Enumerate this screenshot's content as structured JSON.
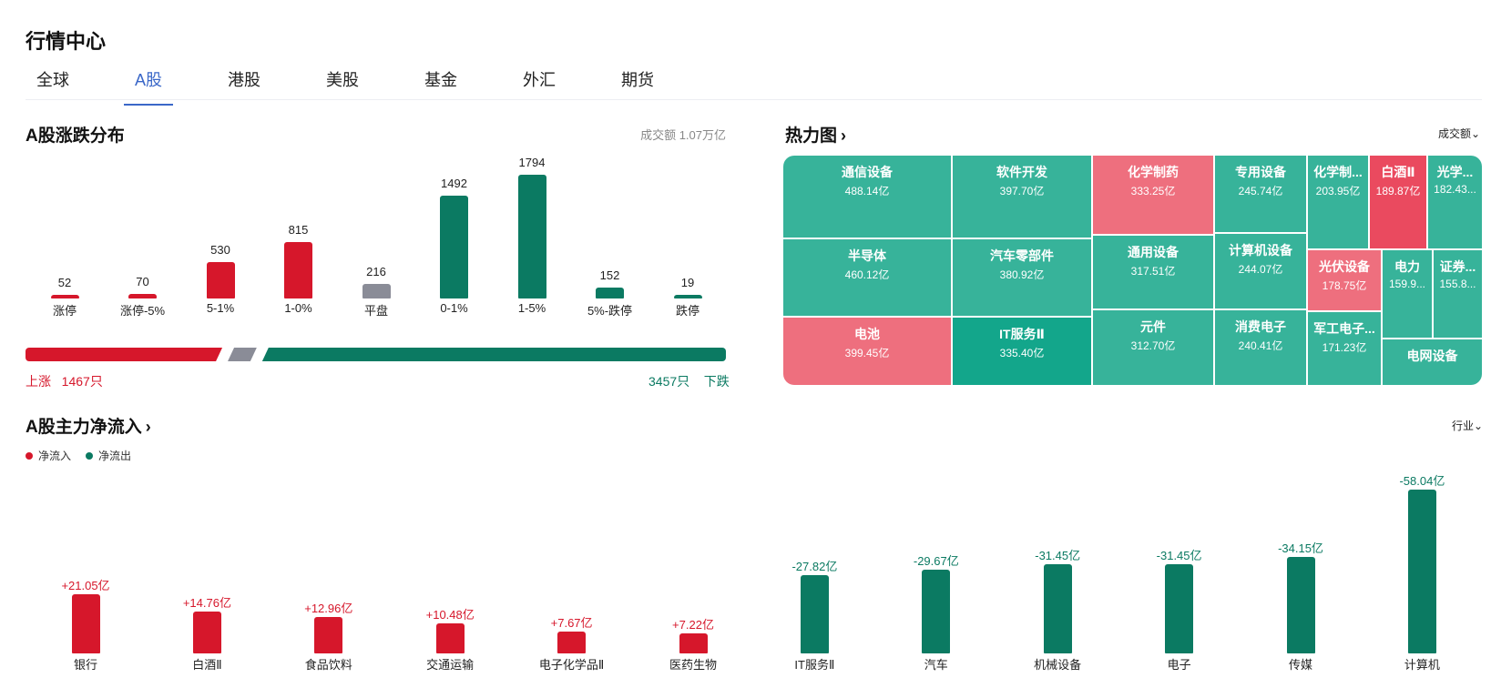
{
  "header": {
    "title": "行情中心",
    "tabs": [
      {
        "label": "全球"
      },
      {
        "label": "A股",
        "active": true
      },
      {
        "label": "港股"
      },
      {
        "label": "美股"
      },
      {
        "label": "基金"
      },
      {
        "label": "外汇"
      },
      {
        "label": "期货"
      }
    ]
  },
  "colors": {
    "up": "#d6172b",
    "down": "#0b7a62",
    "flat": "#8a8c97",
    "accent": "#3a67c8"
  },
  "distribution": {
    "title": "A股涨跌分布",
    "turnover": "成交额 1.07万亿",
    "up_label": "上涨",
    "up_count": "1467只",
    "down_count": "3457只",
    "down_label": "下跌"
  },
  "heatmap": {
    "title": "热力图",
    "chevron": "›",
    "sort": "成交额",
    "cells": [
      {
        "name": "通信设备",
        "value": "488.14亿",
        "trend": "down"
      },
      {
        "name": "半导体",
        "value": "460.12亿",
        "trend": "down"
      },
      {
        "name": "电池",
        "value": "399.45亿",
        "trend": "up"
      },
      {
        "name": "软件开发",
        "value": "397.70亿",
        "trend": "down"
      },
      {
        "name": "汽车零部件",
        "value": "380.92亿",
        "trend": "down"
      },
      {
        "name": "IT服务Ⅱ",
        "value": "335.40亿",
        "trend": "down-strong"
      },
      {
        "name": "化学制药",
        "value": "333.25亿",
        "trend": "up"
      },
      {
        "name": "通用设备",
        "value": "317.51亿",
        "trend": "down"
      },
      {
        "name": "元件",
        "value": "312.70亿",
        "trend": "down"
      },
      {
        "name": "专用设备",
        "value": "245.74亿",
        "trend": "down"
      },
      {
        "name": "计算机设备",
        "value": "244.07亿",
        "trend": "down"
      },
      {
        "name": "消费电子",
        "value": "240.41亿",
        "trend": "down"
      },
      {
        "name": "化学制...",
        "value": "203.95亿",
        "trend": "down"
      },
      {
        "name": "白酒Ⅱ",
        "value": "189.87亿",
        "trend": "up-strong"
      },
      {
        "name": "光学...",
        "value": "182.43...",
        "trend": "down"
      },
      {
        "name": "光伏设备",
        "value": "178.75亿",
        "trend": "up"
      },
      {
        "name": "电力",
        "value": "159.9...",
        "trend": "down"
      },
      {
        "name": "证券...",
        "value": "155.8...",
        "trend": "down"
      },
      {
        "name": "军工电子...",
        "value": "171.23亿",
        "trend": "down"
      },
      {
        "name": "电网设备",
        "value": "",
        "trend": "down"
      }
    ]
  },
  "flows": {
    "title": "A股主力净流入",
    "chevron": "›",
    "filter": "行业",
    "legend_in": "净流入",
    "legend_out": "净流出"
  },
  "chart_data": [
    {
      "type": "bar",
      "title": "A股涨跌分布",
      "categories": [
        "涨停",
        "涨停-5%",
        "5-1%",
        "1-0%",
        "平盘",
        "0-1%",
        "1-5%",
        "5%-跌停",
        "跌停"
      ],
      "values": [
        52,
        70,
        530,
        815,
        216,
        1492,
        1794,
        152,
        19
      ],
      "value_labels": [
        "52",
        "70",
        "530",
        "815",
        "216",
        "1492",
        "1794",
        "152",
        "19"
      ],
      "colors": [
        "up",
        "up",
        "up",
        "up",
        "flat",
        "down",
        "down",
        "down",
        "down"
      ]
    },
    {
      "type": "bar",
      "title": "A股主力净流入",
      "categories": [
        "银行",
        "白酒Ⅱ",
        "食品饮料",
        "交通运输",
        "电子化学品Ⅱ",
        "医药生物",
        "IT服务Ⅱ",
        "汽车",
        "机械设备",
        "电子",
        "传媒",
        "计算机"
      ],
      "values": [
        21.05,
        14.76,
        12.96,
        10.48,
        7.67,
        7.22,
        -27.82,
        -29.67,
        -31.45,
        -31.45,
        -34.15,
        -58.04
      ],
      "value_labels": [
        "+21.05亿",
        "+14.76亿",
        "+12.96亿",
        "+10.48亿",
        "+7.67亿",
        "+7.22亿",
        "-27.82亿",
        "-29.67亿",
        "-31.45亿",
        "-31.45亿",
        "-34.15亿",
        "-58.04亿"
      ]
    }
  ]
}
